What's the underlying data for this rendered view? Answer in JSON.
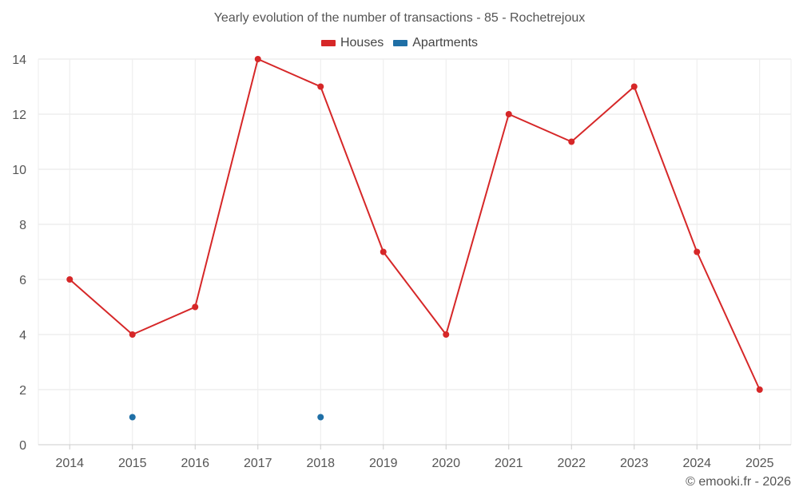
{
  "chart_data": {
    "type": "line",
    "title": "Yearly evolution of the number of transactions - 85 - Rochetrejoux",
    "categories": [
      "2014",
      "2015",
      "2016",
      "2017",
      "2018",
      "2019",
      "2020",
      "2021",
      "2022",
      "2023",
      "2024",
      "2025"
    ],
    "series": [
      {
        "name": "Houses",
        "color": "#d62728",
        "values": [
          6,
          4,
          5,
          14,
          13,
          7,
          4,
          12,
          11,
          13,
          7,
          2
        ],
        "line": true
      },
      {
        "name": "Apartments",
        "color": "#1f6fa6",
        "values": [
          null,
          1,
          null,
          null,
          1,
          null,
          null,
          null,
          null,
          null,
          null,
          null
        ],
        "line": false
      }
    ],
    "ylim": [
      0,
      14
    ],
    "yticks": [
      0,
      2,
      4,
      6,
      8,
      10,
      12,
      14
    ],
    "xlabel": "",
    "ylabel": "",
    "grid": true,
    "legend_position": "top-center"
  },
  "credit": "© emooki.fr - 2026"
}
